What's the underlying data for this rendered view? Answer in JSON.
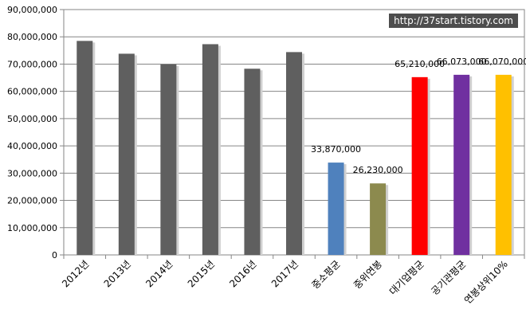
{
  "watermark": "http://37start.tistory.com",
  "chart_data": {
    "type": "bar",
    "title": "",
    "xlabel": "",
    "ylabel": "",
    "ylim": [
      0,
      90000000
    ],
    "ytick_step": 10000000,
    "grid": true,
    "legend": "none",
    "categories": [
      "2012년",
      "2013년",
      "2014년",
      "2015년",
      "2016년",
      "2017년",
      "중소평균",
      "중위연봉",
      "대기업평균",
      "공기관평균",
      "연봉상위10%"
    ],
    "values": [
      78500000,
      73800000,
      69900000,
      77300000,
      68300000,
      74400000,
      33870000,
      26230000,
      65210000,
      66073000,
      66070000
    ],
    "data_labels": [
      "",
      "",
      "",
      "",
      "",
      "",
      "33,870,000",
      "26,230,000",
      "65,210,000",
      "66,073,000",
      "66,070,000"
    ],
    "colors": [
      "#5f5f5f",
      "#5f5f5f",
      "#5f5f5f",
      "#5f5f5f",
      "#5f5f5f",
      "#5f5f5f",
      "#4f81bd",
      "#8c8a4e",
      "#ff0000",
      "#7030a0",
      "#ffc000"
    ]
  }
}
